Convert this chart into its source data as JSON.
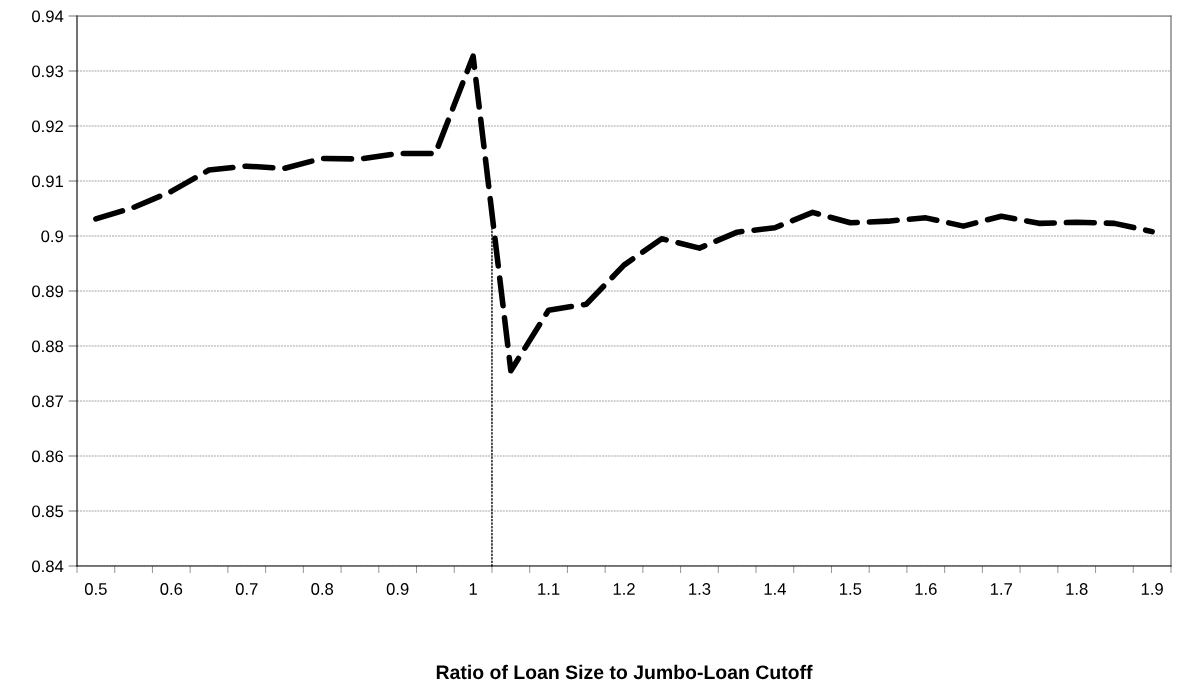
{
  "chart_data": {
    "type": "line",
    "xlabel": "Ratio of Loan Size to Jumbo-Loan Cutoff",
    "x": [
      0.5,
      0.55,
      0.6,
      0.65,
      0.7,
      0.75,
      0.8,
      0.85,
      0.9,
      0.95,
      1.0,
      1.05,
      1.1,
      1.15,
      1.2,
      1.25,
      1.3,
      1.35,
      1.4,
      1.45,
      1.5,
      1.55,
      1.6,
      1.65,
      1.7,
      1.75,
      1.8,
      1.85,
      1.9
    ],
    "series": [
      {
        "color": "#000000",
        "line_style": "dashed",
        "values": [
          0.9031,
          0.9052,
          0.9081,
          0.912,
          0.9127,
          0.9123,
          0.9141,
          0.914,
          0.915,
          0.915,
          0.9327,
          0.8755,
          0.8865,
          0.8876,
          0.8947,
          0.8995,
          0.8978,
          0.9007,
          0.9015,
          0.9043,
          0.9024,
          0.9027,
          0.9033,
          0.9018,
          0.9036,
          0.9023,
          0.9025,
          0.9023,
          0.9008
        ]
      },
      {
        "color": "#000000",
        "line_style": "dotted",
        "x": [
          1.025,
          1.025
        ],
        "values": [
          0.84,
          0.9047
        ]
      }
    ],
    "xlim": [
      0.475,
      1.925
    ],
    "xticks": [
      0.5,
      0.6,
      0.7,
      0.8,
      0.9,
      1,
      1.1,
      1.2,
      1.3,
      1.4,
      1.5,
      1.6,
      1.7,
      1.8,
      1.9,
      {
        "value": 0.475,
        "label": null
      },
      {
        "value": 0.525,
        "label": null
      },
      {
        "value": 0.575,
        "label": null
      },
      {
        "value": 0.625,
        "label": null
      },
      {
        "value": 0.675,
        "label": null
      },
      {
        "value": 0.725,
        "label": null
      },
      {
        "value": 0.775,
        "label": null
      },
      {
        "value": 0.825,
        "label": null
      },
      {
        "value": 0.875,
        "label": null
      },
      {
        "value": 0.925,
        "label": null
      },
      {
        "value": 0.975,
        "label": null
      },
      {
        "value": 1.025,
        "label": null
      },
      {
        "value": 1.075,
        "label": null
      },
      {
        "value": 1.125,
        "label": null
      },
      {
        "value": 1.175,
        "label": null
      },
      {
        "value": 1.225,
        "label": null
      },
      {
        "value": 1.275,
        "label": null
      },
      {
        "value": 1.325,
        "label": null
      },
      {
        "value": 1.375,
        "label": null
      },
      {
        "value": 1.425,
        "label": null
      },
      {
        "value": 1.475,
        "label": null
      },
      {
        "value": 1.525,
        "label": null
      },
      {
        "value": 1.575,
        "label": null
      },
      {
        "value": 1.625,
        "label": null
      },
      {
        "value": 1.675,
        "label": null
      },
      {
        "value": 1.725,
        "label": null
      },
      {
        "value": 1.775,
        "label": null
      },
      {
        "value": 1.825,
        "label": null
      },
      {
        "value": 1.875,
        "label": null
      },
      {
        "value": 1.925,
        "label": null
      }
    ],
    "ylim": [
      0.84,
      0.94
    ],
    "yticks": [
      0.84,
      0.85,
      0.86,
      0.87,
      0.88,
      0.89,
      0.9,
      0.91,
      0.92,
      0.93,
      0.94
    ],
    "grid": "y",
    "legend": false,
    "marker": "none"
  }
}
